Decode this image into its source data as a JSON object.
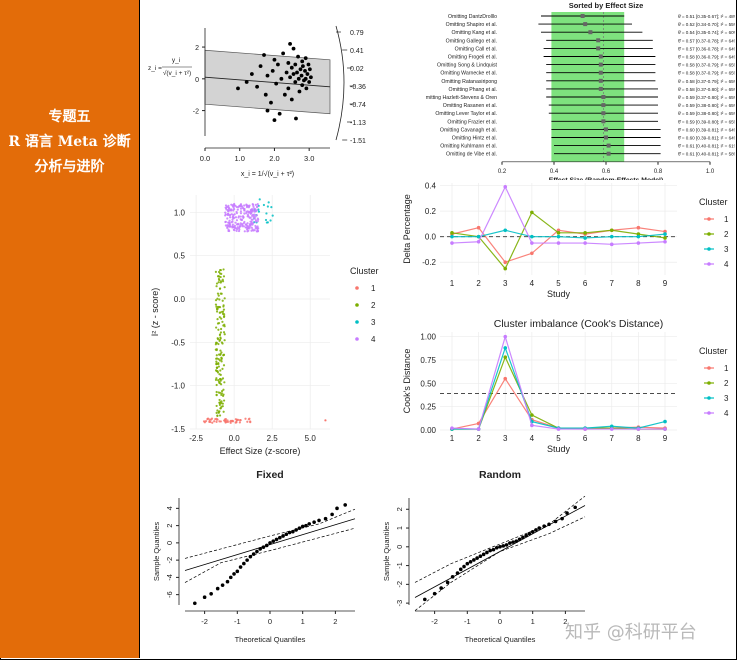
{
  "sidebar": {
    "lines": [
      "专题五",
      "R 语言 Meta 诊断",
      "分析与进阶"
    ],
    "color": "#e36c09"
  },
  "watermark": "知乎 @科研平台",
  "chart_data": [
    {
      "id": "galbraith",
      "type": "scatter",
      "title": "",
      "ylabel_fraction": {
        "numerator": "y_i",
        "denominator": "√(v_i + τ²)",
        "lhs": "z_i ="
      },
      "xlabel": "x_i = 1/√(v_i + τ²)",
      "x_ticks": [
        "0.0",
        "1.0",
        "2.0",
        "3.0"
      ],
      "xlim": [
        0,
        3.6
      ],
      "y_ticks": [
        "2",
        "0",
        "-2"
      ],
      "ylim": [
        -3.6,
        3.2
      ],
      "right_axis_ticks": [
        "0.79",
        "0.41",
        "0.02",
        "-0.36",
        "-0.74",
        "-1.13",
        "-1.51"
      ],
      "points": [
        [
          0.95,
          -0.6
        ],
        [
          1.2,
          -0.2
        ],
        [
          1.35,
          0.3
        ],
        [
          1.5,
          -0.5
        ],
        [
          1.6,
          0.8
        ],
        [
          1.7,
          1.5
        ],
        [
          1.75,
          -1.0
        ],
        [
          1.8,
          0.2
        ],
        [
          1.9,
          -1.5
        ],
        [
          1.95,
          0.5
        ],
        [
          2.0,
          1.2
        ],
        [
          2.05,
          -0.3
        ],
        [
          2.1,
          0.9
        ],
        [
          2.15,
          -2.2
        ],
        [
          2.2,
          0.0
        ],
        [
          2.25,
          1.6
        ],
        [
          2.3,
          -1.0
        ],
        [
          2.35,
          0.4
        ],
        [
          2.4,
          1.0
        ],
        [
          2.4,
          -0.6
        ],
        [
          2.45,
          0.1
        ],
        [
          2.5,
          0.7
        ],
        [
          2.5,
          -1.3
        ],
        [
          2.55,
          0.3
        ],
        [
          2.55,
          1.9
        ],
        [
          2.6,
          -0.2
        ],
        [
          2.6,
          0.9
        ],
        [
          2.62,
          -2.5
        ],
        [
          2.65,
          0.4
        ],
        [
          2.68,
          1.4
        ],
        [
          2.7,
          0.0
        ],
        [
          2.72,
          -0.8
        ],
        [
          2.75,
          0.6
        ],
        [
          2.78,
          0.2
        ],
        [
          2.8,
          1.1
        ],
        [
          2.8,
          -0.4
        ],
        [
          2.82,
          0.8
        ],
        [
          2.85,
          -0.1
        ],
        [
          2.88,
          0.5
        ],
        [
          2.9,
          1.3
        ],
        [
          2.9,
          0.0
        ],
        [
          2.92,
          -0.6
        ],
        [
          2.95,
          0.3
        ],
        [
          2.98,
          0.9
        ],
        [
          3.0,
          -0.2
        ],
        [
          3.02,
          0.6
        ],
        [
          3.05,
          0.1
        ],
        [
          2.0,
          -2.6
        ],
        [
          1.8,
          -2.0
        ],
        [
          2.45,
          2.2
        ]
      ]
    },
    {
      "id": "leave-one-out",
      "type": "forest",
      "title": "Sorted by Effect Size",
      "xlabel": "Effect Size (Random-Effects Model)",
      "x_ticks": [
        "0.2",
        "0.4",
        "0.6",
        "0.8",
        "1.0"
      ],
      "xlim": [
        0.2,
        1.0
      ],
      "shade_range": [
        0.39,
        0.67
      ],
      "shade_color": "#7ee27e",
      "rows": [
        {
          "label": "Omitting DantzDrolllo",
          "est": 0.51,
          "lo": 0.35,
          "hi": 0.67,
          "stat": "θ̂ = 0.51 [0.35-0.67]; I² = 48%"
        },
        {
          "label": "Omitting Shapiro et al.",
          "est": 0.52,
          "lo": 0.34,
          "hi": 0.7,
          "stat": "θ̂ = 0.52 [0.34-0.70]; I² = 55%"
        },
        {
          "label": "Omitting Kang et al.",
          "est": 0.54,
          "lo": 0.35,
          "hi": 0.74,
          "stat": "θ̂ = 0.54 [0.35-0.74]; I² = 60%"
        },
        {
          "label": "Omitting Gallego et al.",
          "est": 0.57,
          "lo": 0.37,
          "hi": 0.78,
          "stat": "θ̂ = 0.57 [0.37-0.78]; I² = 64%"
        },
        {
          "label": "Omitting Call et al.",
          "est": 0.57,
          "lo": 0.36,
          "hi": 0.78,
          "stat": "θ̂ = 0.57 [0.36-0.78]; I² = 64%"
        },
        {
          "label": "Omitting Frogeli et al.",
          "est": 0.58,
          "lo": 0.36,
          "hi": 0.79,
          "stat": "θ̂ = 0.58 [0.36-0.79]; I² = 64%"
        },
        {
          "label": "Omitting Song & Lindquist",
          "est": 0.58,
          "lo": 0.37,
          "hi": 0.79,
          "stat": "θ̂ = 0.58 [0.37-0.79]; I² = 65%"
        },
        {
          "label": "Omitting Warnecke et al.",
          "est": 0.58,
          "lo": 0.37,
          "hi": 0.79,
          "stat": "θ̂ = 0.58 [0.37-0.79]; I² = 65%"
        },
        {
          "label": "Omitting Ratanasiripong",
          "est": 0.58,
          "lo": 0.37,
          "hi": 0.79,
          "stat": "θ̂ = 0.58 [0.37-0.79]; I² = 65%"
        },
        {
          "label": "Omitting Phang et al.",
          "est": 0.58,
          "lo": 0.37,
          "hi": 0.8,
          "stat": "θ̂ = 0.58 [0.37-0.80]; I² = 65%"
        },
        {
          "label": "mitting Hazlett-Stevens & Oren",
          "est": 0.59,
          "lo": 0.37,
          "hi": 0.8,
          "stat": "θ̂ = 0.59 [0.37-0.80]; I² = 65%"
        },
        {
          "label": "Omitting Rasanen et al.",
          "est": 0.59,
          "lo": 0.38,
          "hi": 0.8,
          "stat": "θ̂ = 0.59 [0.38-0.80]; I² = 65%"
        },
        {
          "label": "Omitting Lever Taylor et al.",
          "est": 0.59,
          "lo": 0.38,
          "hi": 0.8,
          "stat": "θ̂ = 0.59 [0.38-0.80]; I² = 65%"
        },
        {
          "label": "Omitting Frazier et al.",
          "est": 0.59,
          "lo": 0.39,
          "hi": 0.8,
          "stat": "θ̂ = 0.59 [0.39-0.80]; I² = 65%"
        },
        {
          "label": "Omitting Cavanagh et al.",
          "est": 0.6,
          "lo": 0.39,
          "hi": 0.81,
          "stat": "θ̂ = 0.60 [0.39-0.81]; I² = 64%"
        },
        {
          "label": "Omitting Hintz et al.",
          "est": 0.6,
          "lo": 0.39,
          "hi": 0.81,
          "stat": "θ̂ = 0.60 [0.39-0.81]; I² = 64%"
        },
        {
          "label": "Omitting Kuhlmann et al.",
          "est": 0.61,
          "lo": 0.4,
          "hi": 0.81,
          "stat": "θ̂ = 0.61 [0.40-0.81]; I² = 61%"
        },
        {
          "label": "Omitting de Vibe et al.",
          "est": 0.61,
          "lo": 0.4,
          "hi": 0.81,
          "stat": "θ̂ = 0.61 [0.40-0.81]; I² = 58%"
        }
      ]
    },
    {
      "id": "gosh-cluster",
      "type": "scatter",
      "title": "",
      "xlabel": "Effect Size (z-score)",
      "ylabel": "I² (z - score)",
      "x_ticks": [
        "-2.5",
        "0.0",
        "2.5",
        "5.0"
      ],
      "xlim": [
        -2.9,
        6.3
      ],
      "y_ticks": [
        "1.0",
        "0.5",
        "0.0",
        "-0.5",
        "-1.0",
        "-1.5"
      ],
      "ylim": [
        -1.5,
        1.2
      ],
      "legend_title": "Cluster",
      "legend_position": "right",
      "series": [
        {
          "name": "1",
          "color": "#f8766d",
          "cloud": {
            "x": [
              -2.0,
              1.2
            ],
            "y": [
              -1.43,
              -1.38
            ]
          },
          "count": 55,
          "extra": [
            [
              6.0,
              -1.4
            ]
          ]
        },
        {
          "name": "2",
          "color": "#7cae00",
          "cloud": {
            "x": [
              -1.2,
              -0.6
            ],
            "y": [
              -1.35,
              0.35
            ]
          },
          "count": 170
        },
        {
          "name": "3",
          "color": "#00bfc4",
          "cloud": {
            "x": [
              1.3,
              2.6
            ],
            "y": [
              0.88,
              1.15
            ]
          },
          "count": 20
        },
        {
          "name": "4",
          "color": "#c77cff",
          "cloud": {
            "x": [
              -0.6,
              1.6
            ],
            "y": [
              0.78,
              1.1
            ]
          },
          "count": 230
        }
      ]
    },
    {
      "id": "delta-percentage",
      "type": "line",
      "title": "",
      "xlabel": "Study",
      "ylabel": "Delta Percentage",
      "x": [
        1,
        2,
        3,
        4,
        5,
        6,
        7,
        8,
        9
      ],
      "ylim": [
        -0.3,
        0.42
      ],
      "y_ticks": [
        "0.4",
        "0.2",
        "0.0",
        "-0.2"
      ],
      "legend_title": "Cluster",
      "legend_position": "right",
      "series": [
        {
          "name": "1",
          "color": "#f8766d",
          "values": [
            0.02,
            0.07,
            -0.2,
            -0.13,
            0.05,
            0.02,
            0.05,
            0.07,
            0.04
          ]
        },
        {
          "name": "2",
          "color": "#7cae00",
          "values": [
            0.03,
            0.0,
            -0.25,
            0.19,
            0.03,
            0.03,
            0.05,
            0.02,
            -0.01
          ]
        },
        {
          "name": "3",
          "color": "#00bfc4",
          "values": [
            0.0,
            0.0,
            0.05,
            0.0,
            0.0,
            -0.01,
            0.0,
            0.0,
            0.02
          ]
        },
        {
          "name": "4",
          "color": "#c77cff",
          "values": [
            -0.05,
            -0.04,
            0.39,
            -0.05,
            -0.05,
            -0.05,
            -0.06,
            -0.05,
            -0.04
          ]
        }
      ]
    },
    {
      "id": "cooks-imbalance",
      "type": "line",
      "title": "Cluster imbalance (Cook's Distance)",
      "xlabel": "Study",
      "ylabel": "Cook's Distance",
      "x": [
        1,
        2,
        3,
        4,
        5,
        6,
        7,
        8,
        9
      ],
      "ylim": [
        0,
        1.05
      ],
      "y_ticks": [
        "1.00",
        "0.75",
        "0.50",
        "0.25",
        "0.00"
      ],
      "reference_line": 0.39,
      "legend_title": "Cluster",
      "legend_position": "right",
      "series": [
        {
          "name": "1",
          "color": "#f8766d",
          "values": [
            0.01,
            0.07,
            0.55,
            0.11,
            0.02,
            0.01,
            0.02,
            0.03,
            0.02
          ]
        },
        {
          "name": "2",
          "color": "#7cae00",
          "values": [
            0.01,
            0.01,
            0.78,
            0.16,
            0.02,
            0.02,
            0.02,
            0.01,
            0.01
          ]
        },
        {
          "name": "3",
          "color": "#00bfc4",
          "values": [
            0.01,
            0.01,
            0.88,
            0.09,
            0.02,
            0.02,
            0.04,
            0.02,
            0.09
          ]
        },
        {
          "name": "4",
          "color": "#c77cff",
          "values": [
            0.02,
            0.01,
            1.0,
            0.05,
            0.01,
            0.01,
            0.01,
            0.01,
            0.01
          ]
        }
      ]
    },
    {
      "id": "qq-fixed",
      "type": "scatter",
      "title": "Fixed",
      "xlabel": "Theoretical Quantiles",
      "ylabel": "Sample Quantiles",
      "x_ticks": [
        "-2",
        "-1",
        "0",
        "1",
        "2"
      ],
      "xlim": [
        -2.6,
        2.6
      ],
      "y_ticks": [
        "4",
        "2",
        "0",
        "-2",
        "-4",
        "-6"
      ],
      "ylim": [
        -7.2,
        5.2
      ],
      "fit_line": [
        [
          -2.6,
          -3.2
        ],
        [
          2.6,
          2.8
        ]
      ],
      "band_upper": [
        [
          -2.6,
          -1.8
        ],
        [
          -1.5,
          -0.7
        ],
        [
          0,
          0.8
        ],
        [
          1.5,
          2.2
        ],
        [
          2.6,
          3.9
        ]
      ],
      "band_lower": [
        [
          -2.6,
          -4.6
        ],
        [
          -1.5,
          -2.3
        ],
        [
          0,
          -0.9
        ],
        [
          1.5,
          0.6
        ],
        [
          2.6,
          1.7
        ]
      ],
      "points": [
        [
          -2.3,
          -7.0
        ],
        [
          -2.0,
          -6.3
        ],
        [
          -1.8,
          -5.9
        ],
        [
          -1.6,
          -5.3
        ],
        [
          -1.45,
          -4.9
        ],
        [
          -1.3,
          -4.5
        ],
        [
          -1.2,
          -4.0
        ],
        [
          -1.1,
          -3.6
        ],
        [
          -1.0,
          -3.3
        ],
        [
          -0.9,
          -2.8
        ],
        [
          -0.8,
          -2.4
        ],
        [
          -0.7,
          -2.0
        ],
        [
          -0.6,
          -1.6
        ],
        [
          -0.5,
          -1.3
        ],
        [
          -0.4,
          -1.0
        ],
        [
          -0.3,
          -0.7
        ],
        [
          -0.2,
          -0.5
        ],
        [
          -0.1,
          -0.3
        ],
        [
          0.0,
          0.0
        ],
        [
          0.1,
          0.2
        ],
        [
          0.2,
          0.4
        ],
        [
          0.3,
          0.6
        ],
        [
          0.4,
          0.8
        ],
        [
          0.5,
          1.0
        ],
        [
          0.6,
          1.2
        ],
        [
          0.7,
          1.3
        ],
        [
          0.8,
          1.5
        ],
        [
          0.9,
          1.7
        ],
        [
          1.0,
          1.9
        ],
        [
          1.1,
          2.0
        ],
        [
          1.2,
          2.2
        ],
        [
          1.35,
          2.4
        ],
        [
          1.5,
          2.6
        ],
        [
          1.7,
          2.8
        ],
        [
          1.9,
          3.3
        ],
        [
          2.05,
          4.0
        ],
        [
          2.3,
          4.4
        ]
      ]
    },
    {
      "id": "qq-random",
      "type": "scatter",
      "title": "Random",
      "xlabel": "Theoretical Quantiles",
      "ylabel": "Sample Quantiles",
      "x_ticks": [
        "-2",
        "-1",
        "0",
        "1",
        "2"
      ],
      "xlim": [
        -2.6,
        2.6
      ],
      "y_ticks": [
        "2",
        "1",
        "0",
        "-1",
        "-2",
        "-3"
      ],
      "ylim": [
        -3.1,
        2.6
      ],
      "fit_line": [
        [
          -2.6,
          -2.7
        ],
        [
          2.6,
          2.2
        ]
      ],
      "band_upper": [
        [
          -2.6,
          -1.9
        ],
        [
          -1.5,
          -0.9
        ],
        [
          0,
          0.15
        ],
        [
          1.5,
          1.2
        ],
        [
          2.6,
          2.7
        ]
      ],
      "band_lower": [
        [
          -2.6,
          -3.4
        ],
        [
          -1.5,
          -1.9
        ],
        [
          0,
          -0.25
        ],
        [
          1.5,
          0.7
        ],
        [
          2.6,
          1.6
        ]
      ],
      "points": [
        [
          -2.3,
          -2.8
        ],
        [
          -2.0,
          -2.5
        ],
        [
          -1.8,
          -2.2
        ],
        [
          -1.6,
          -1.9
        ],
        [
          -1.45,
          -1.6
        ],
        [
          -1.3,
          -1.4
        ],
        [
          -1.2,
          -1.2
        ],
        [
          -1.1,
          -1.05
        ],
        [
          -1.0,
          -0.9
        ],
        [
          -0.9,
          -0.8
        ],
        [
          -0.8,
          -0.7
        ],
        [
          -0.7,
          -0.6
        ],
        [
          -0.6,
          -0.5
        ],
        [
          -0.5,
          -0.4
        ],
        [
          -0.4,
          -0.3
        ],
        [
          -0.3,
          -0.2
        ],
        [
          -0.2,
          -0.15
        ],
        [
          -0.1,
          -0.05
        ],
        [
          0.0,
          0.0
        ],
        [
          0.1,
          0.05
        ],
        [
          0.2,
          0.1
        ],
        [
          0.3,
          0.2
        ],
        [
          0.4,
          0.25
        ],
        [
          0.5,
          0.3
        ],
        [
          0.6,
          0.4
        ],
        [
          0.7,
          0.5
        ],
        [
          0.8,
          0.6
        ],
        [
          0.9,
          0.7
        ],
        [
          1.0,
          0.8
        ],
        [
          1.1,
          0.9
        ],
        [
          1.2,
          1.0
        ],
        [
          1.35,
          1.1
        ],
        [
          1.5,
          1.2
        ],
        [
          1.7,
          1.35
        ],
        [
          1.9,
          1.5
        ],
        [
          2.05,
          1.8
        ],
        [
          2.3,
          2.1
        ]
      ]
    }
  ]
}
